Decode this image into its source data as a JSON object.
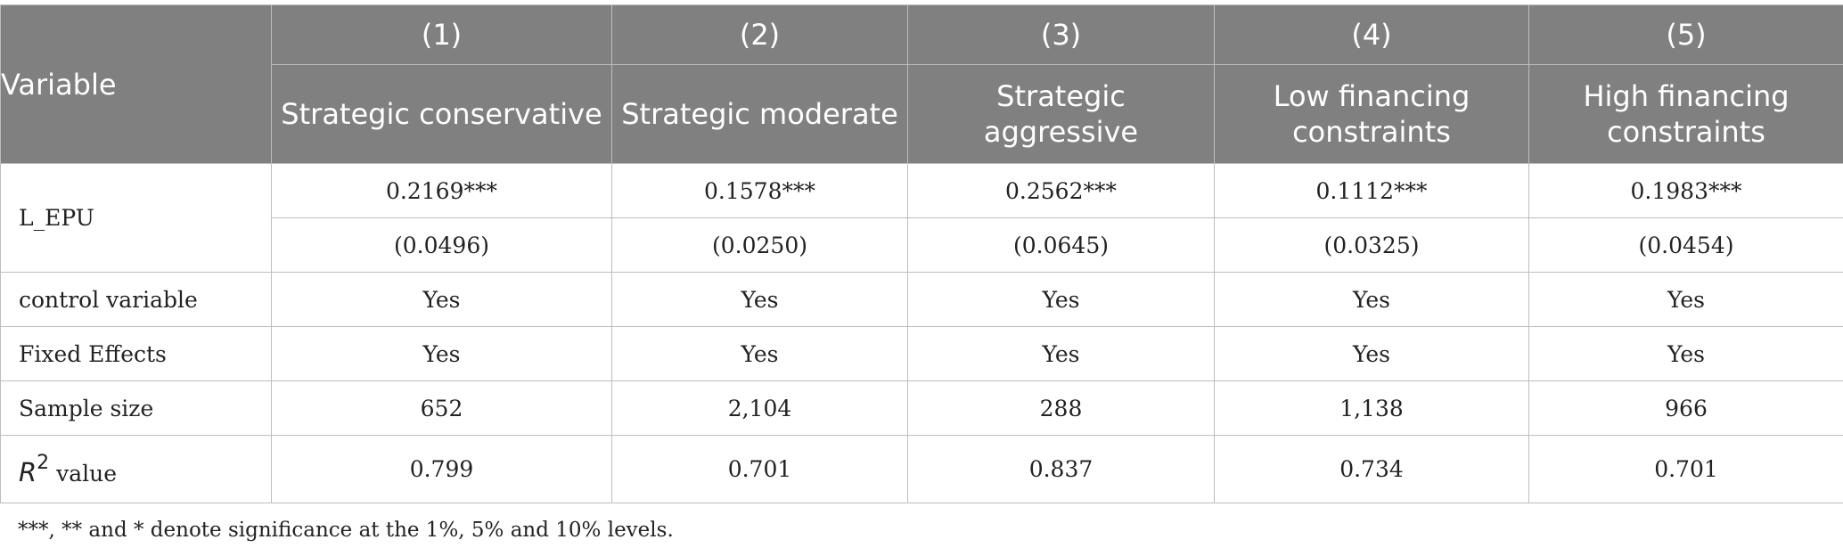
{
  "table": {
    "header": {
      "variable_label": "Variable",
      "columns": [
        {
          "number": "(1)",
          "name": "Strategic conservative"
        },
        {
          "number": "(2)",
          "name": "Strategic moderate"
        },
        {
          "number": "(3)",
          "name": "Strategic aggressive"
        },
        {
          "number": "(4)",
          "name": "Low financing constraints"
        },
        {
          "number": "(5)",
          "name": "High financing constraints"
        }
      ]
    },
    "rows": {
      "l_epu": {
        "label": "L_EPU",
        "coefficients": [
          "0.2169***",
          "0.1578***",
          "0.2562***",
          "0.1112***",
          "0.1983***"
        ],
        "std_errors": [
          "(0.0496)",
          "(0.0250)",
          "(0.0645)",
          "(0.0325)",
          "(0.0454)"
        ]
      },
      "control": {
        "label": "control variable",
        "values": [
          "Yes",
          "Yes",
          "Yes",
          "Yes",
          "Yes"
        ]
      },
      "fixed": {
        "label": "Fixed Effects",
        "values": [
          "Yes",
          "Yes",
          "Yes",
          "Yes",
          "Yes"
        ]
      },
      "sample": {
        "label": "Sample size",
        "values": [
          "652",
          "2,104",
          "288",
          "1,138",
          "966"
        ]
      },
      "r2": {
        "symbol": "R",
        "superscript": "2",
        "suffix": " value",
        "values": [
          "0.799",
          "0.701",
          "0.837",
          "0.734",
          "0.701"
        ]
      }
    }
  },
  "footnote": "***, ** and * denote significance at the 1%, 5% and 10% levels."
}
